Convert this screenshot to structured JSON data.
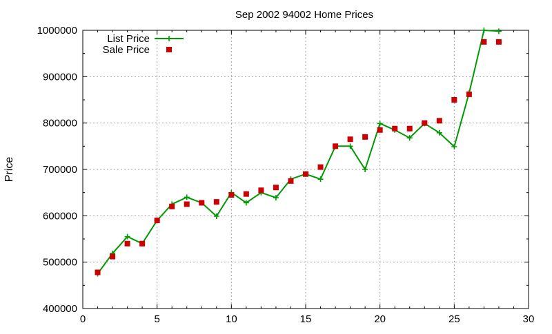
{
  "chart_data": {
    "type": "line",
    "title": "Sep 2002 94002 Home Prices",
    "xlabel": "",
    "ylabel": "Price",
    "xlim": [
      0,
      30
    ],
    "ylim": [
      400000,
      1000000
    ],
    "x_ticks": [
      "0",
      "5",
      "10",
      "15",
      "20",
      "25",
      "30"
    ],
    "y_ticks": [
      "400000",
      "500000",
      "600000",
      "700000",
      "800000",
      "900000",
      "1000000"
    ],
    "grid": true,
    "legend_position": "top-left",
    "series": [
      {
        "name": "List Price",
        "style": "line+cross",
        "color": "#009900",
        "points": [
          [
            1,
            475000
          ],
          [
            2,
            519000
          ],
          [
            3,
            555000
          ],
          [
            4,
            540000
          ],
          [
            5,
            590000
          ],
          [
            6,
            625000
          ],
          [
            7,
            640000
          ],
          [
            8,
            628000
          ],
          [
            9,
            599000
          ],
          [
            10,
            650000
          ],
          [
            11,
            628000
          ],
          [
            12,
            650000
          ],
          [
            13,
            639000
          ],
          [
            14,
            679000
          ],
          [
            15,
            690000
          ],
          [
            16,
            679000
          ],
          [
            17,
            750000
          ],
          [
            18,
            750000
          ],
          [
            19,
            700000
          ],
          [
            20,
            799000
          ],
          [
            21,
            785000
          ],
          [
            22,
            768000
          ],
          [
            23,
            799000
          ],
          [
            24,
            779000
          ],
          [
            25,
            749000
          ],
          [
            26,
            865000
          ],
          [
            27,
            1000000
          ],
          [
            28,
            998000
          ]
        ]
      },
      {
        "name": "Sale Price",
        "style": "square",
        "color": "#cc0000",
        "points": [
          [
            1,
            478000
          ],
          [
            2,
            512000
          ],
          [
            3,
            540000
          ],
          [
            4,
            540000
          ],
          [
            5,
            590000
          ],
          [
            6,
            620000
          ],
          [
            7,
            625000
          ],
          [
            8,
            628000
          ],
          [
            9,
            630000
          ],
          [
            10,
            645000
          ],
          [
            11,
            647000
          ],
          [
            12,
            655000
          ],
          [
            13,
            661000
          ],
          [
            14,
            675000
          ],
          [
            15,
            690000
          ],
          [
            16,
            705000
          ],
          [
            17,
            750000
          ],
          [
            18,
            765000
          ],
          [
            19,
            770000
          ],
          [
            20,
            785000
          ],
          [
            21,
            788000
          ],
          [
            22,
            788000
          ],
          [
            23,
            800000
          ],
          [
            24,
            805000
          ],
          [
            25,
            850000
          ],
          [
            26,
            862000
          ],
          [
            27,
            975000
          ],
          [
            28,
            975000
          ]
        ]
      }
    ]
  }
}
